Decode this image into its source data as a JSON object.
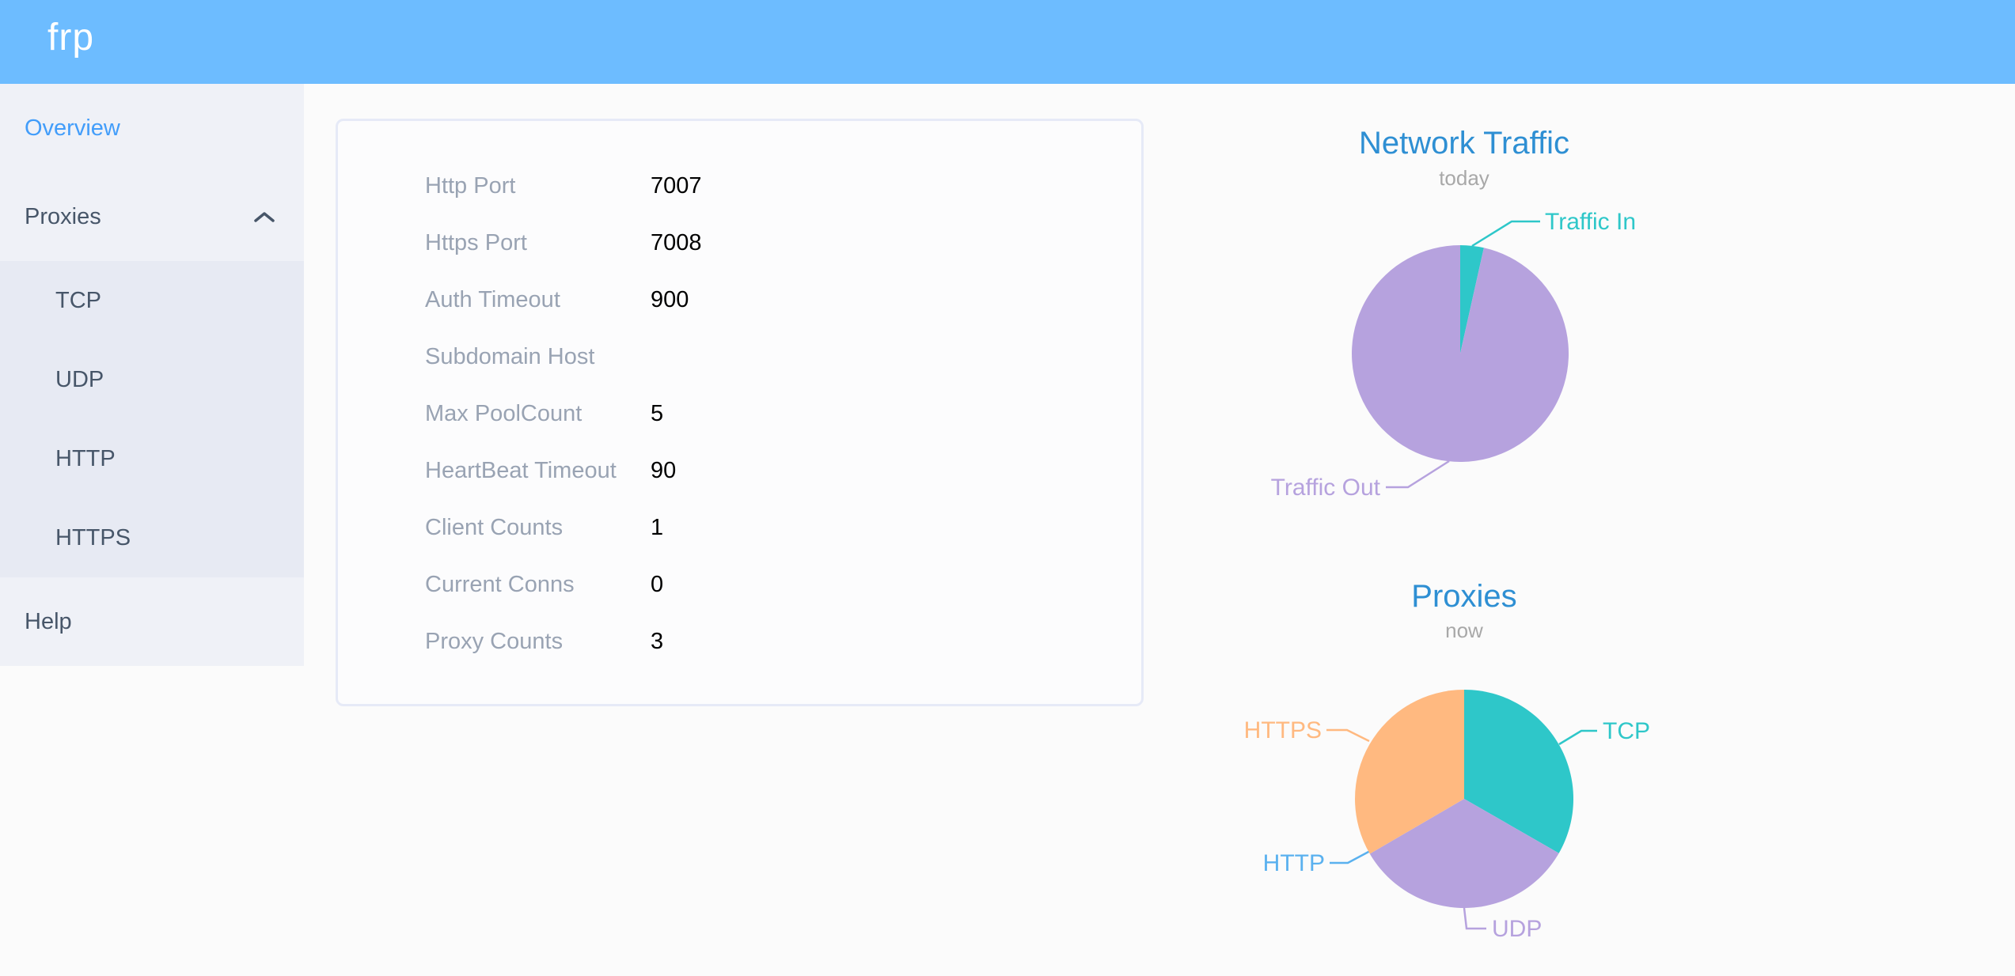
{
  "header": {
    "logo": "frp"
  },
  "sidebar": {
    "overview_label": "Overview",
    "proxies_label": "Proxies",
    "submenu": [
      "TCP",
      "UDP",
      "HTTP",
      "HTTPS"
    ],
    "help_label": "Help"
  },
  "overview_card": {
    "rows": [
      {
        "label": "Http Port",
        "value": "7007"
      },
      {
        "label": "Https Port",
        "value": "7008"
      },
      {
        "label": "Auth Timeout",
        "value": "900"
      },
      {
        "label": "Subdomain Host",
        "value": ""
      },
      {
        "label": "Max PoolCount",
        "value": "5"
      },
      {
        "label": "HeartBeat Timeout",
        "value": "90"
      },
      {
        "label": "Client Counts",
        "value": "1"
      },
      {
        "label": "Current Conns",
        "value": "0"
      },
      {
        "label": "Proxy Counts",
        "value": "3"
      }
    ]
  },
  "colors": {
    "header_bg": "#6dbcff",
    "sidebar_bg": "#eff1f7",
    "submenu_bg": "#e7eaf3",
    "page_bg": "#fbfbfb",
    "active_menu": "#429dfa",
    "menu_text": "#475669",
    "label_gray": "#99a3b3"
  },
  "chart_data": [
    {
      "type": "pie",
      "title": "Network Traffic",
      "subtitle": "today",
      "title_color": "#2e8fd3",
      "subtitle_color": "#a8a8a8",
      "legend_position": "none",
      "slices": [
        {
          "name": "Traffic In",
          "percent": 3.5,
          "color": "#2ec7c9"
        },
        {
          "name": "Traffic Out",
          "percent": 96.5,
          "color": "#b6a2de"
        }
      ]
    },
    {
      "type": "pie",
      "title": "Proxies",
      "subtitle": "now",
      "title_color": "#2e8fd3",
      "subtitle_color": "#a8a8a8",
      "legend_position": "none",
      "slices": [
        {
          "name": "TCP",
          "value": 1,
          "percent": 33.3,
          "color": "#2ec7c9"
        },
        {
          "name": "UDP",
          "value": 1,
          "percent": 33.3,
          "color": "#b6a2de"
        },
        {
          "name": "HTTP",
          "value": 0,
          "percent": 0,
          "color": "#5ab1ef"
        },
        {
          "name": "HTTPS",
          "value": 1,
          "percent": 33.4,
          "color": "#ffb980"
        }
      ]
    }
  ]
}
